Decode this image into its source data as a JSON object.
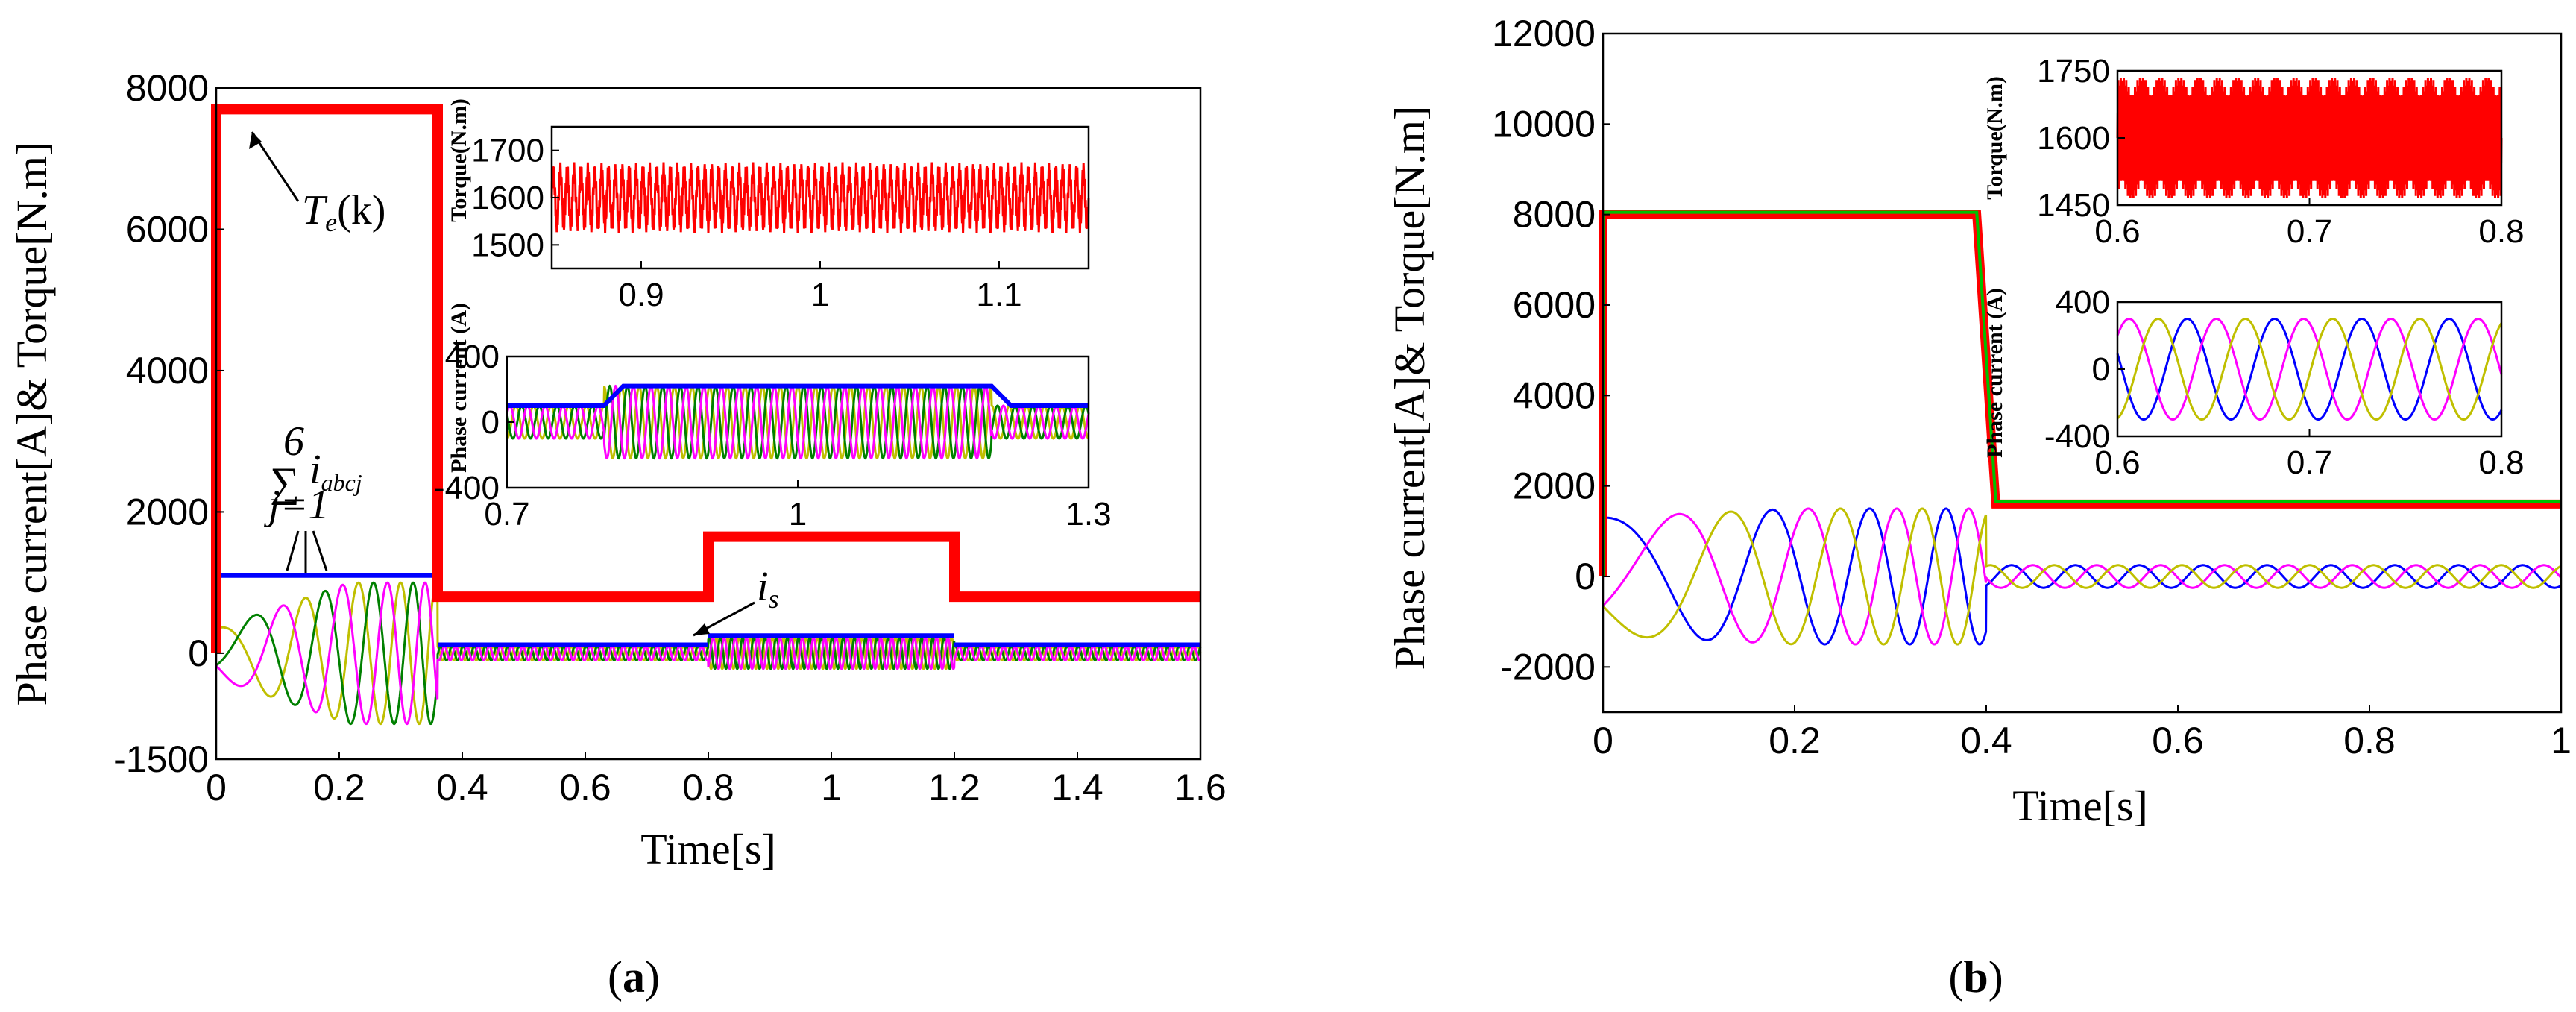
{
  "chart_data": [
    {
      "type": "line",
      "panel": "a",
      "caption_open": "(",
      "caption_letter": "a",
      "caption_close": ")",
      "xlabel": "Time[s]",
      "ylabel": "Phase current[A]& Torque[N.m]",
      "xlim": [
        0,
        1.6
      ],
      "ylim": [
        -1500,
        8000
      ],
      "xticks": [
        "0",
        "0.2",
        "0.4",
        "0.6",
        "0.8",
        "1",
        "1.2",
        "1.4",
        "1.6"
      ],
      "yticks": [
        "-1500",
        "0",
        "2000",
        "4000",
        "6000",
        "8000"
      ],
      "series": [
        {
          "name": "Te(k) torque",
          "color": "#ff0000",
          "segments": [
            [
              0,
              0.36,
              7700
            ],
            [
              0.36,
              0.8,
              800
            ],
            [
              0.8,
              1.2,
              1650
            ],
            [
              1.2,
              1.6,
              800
            ]
          ]
        },
        {
          "name": "is envelope",
          "color": "#0000ff",
          "segments": [
            [
              0,
              0.36,
              1100
            ],
            [
              0.36,
              0.8,
              120
            ],
            [
              0.8,
              1.2,
              250
            ],
            [
              1.2,
              1.6,
              120
            ]
          ]
        },
        {
          "name": "phase currents",
          "colors": [
            "#bfbf00",
            "#008000",
            "#ff00ff"
          ]
        }
      ],
      "annotations": {
        "te": "T",
        "te_sub": "e",
        "te_arg": "(k)",
        "sum_symbol": "∑",
        "sum_upper": "6",
        "sum_lower": "j=1",
        "sum_term": "i",
        "sum_term_sub": "abcj",
        "is": "i",
        "is_sub": "s"
      },
      "insets": [
        {
          "ylabel": "Torque(N.m)",
          "xlim": [
            0.85,
            1.15
          ],
          "ylim": [
            1450,
            1750
          ],
          "xticks": [
            "0.9",
            "1",
            "1.1"
          ],
          "yticks": [
            "1500",
            "1600",
            "1700"
          ]
        },
        {
          "ylabel": "Phase current (A)",
          "xlim": [
            0.7,
            1.3
          ],
          "ylim": [
            -400,
            400
          ],
          "xticks": [
            "0.7",
            "1",
            "1.3"
          ],
          "yticks": [
            "-400",
            "0",
            "400"
          ]
        }
      ]
    },
    {
      "type": "line",
      "panel": "b",
      "caption_open": "(",
      "caption_letter": "b",
      "caption_close": ")",
      "xlabel": "Time[s]",
      "ylabel": "Phase current[A]& Torque[N.m]",
      "xlim": [
        0,
        1
      ],
      "ylim": [
        -3000,
        12000
      ],
      "xticks": [
        "0",
        "0.2",
        "0.4",
        "0.6",
        "0.8",
        "1"
      ],
      "yticks": [
        "-2000",
        "0",
        "2000",
        "4000",
        "6000",
        "8000",
        "10000",
        "12000"
      ],
      "series": [
        {
          "name": "torque",
          "color": "#ff0000",
          "segments": [
            [
              0,
              0.39,
              8000
            ],
            [
              0.39,
              1.0,
              1600
            ]
          ]
        },
        {
          "name": "reference",
          "color": "#00c000",
          "segments": [
            [
              0,
              0.39,
              8050
            ],
            [
              0.39,
              1.0,
              1650
            ]
          ]
        },
        {
          "name": "phase currents",
          "colors": [
            "#0000ff",
            "#ff00ff",
            "#bfbf00"
          ]
        }
      ],
      "insets": [
        {
          "ylabel": "Torque(N.m)",
          "xlim": [
            0.6,
            0.8
          ],
          "ylim": [
            1450,
            1750
          ],
          "xticks": [
            "0.6",
            "0.7",
            "0.8"
          ],
          "yticks": [
            "1450",
            "1600",
            "1750"
          ]
        },
        {
          "ylabel": "Phase current (A)",
          "xlim": [
            0.6,
            0.8
          ],
          "ylim": [
            -400,
            400
          ],
          "xticks": [
            "0.6",
            "0.7",
            "0.8"
          ],
          "yticks": [
            "-400",
            "0",
            "400"
          ]
        }
      ]
    }
  ]
}
